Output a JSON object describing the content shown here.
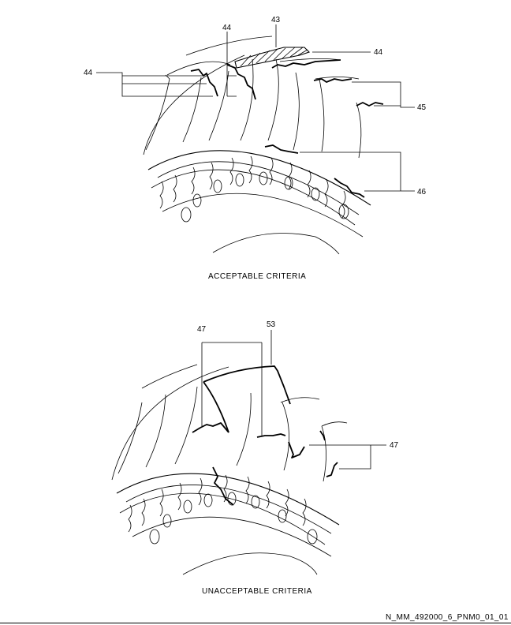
{
  "figures": [
    {
      "caption": "ACCEPTABLE CRITERIA",
      "callouts": [
        "43",
        "44",
        "44",
        "44",
        "45",
        "46"
      ]
    },
    {
      "caption": "UNACCEPTABLE CRITERIA",
      "callouts": [
        "47",
        "53",
        "47"
      ]
    }
  ],
  "figure_id": "N_MM_492000_6_PNM0_01_01"
}
